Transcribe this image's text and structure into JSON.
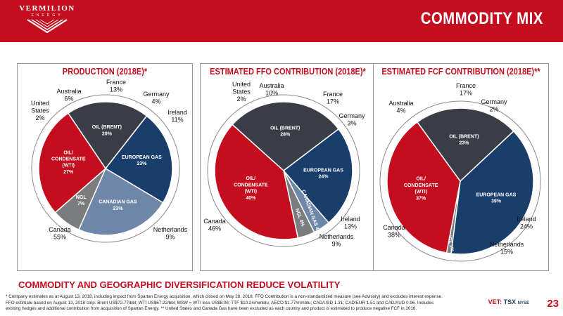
{
  "header": {
    "logo_text": "VERMILION",
    "logo_sub": "ENERGY",
    "title": "COMMODITY MIX"
  },
  "colors": {
    "brand_red": "#c40d1e",
    "oil_gray": "#3a3d45",
    "euro_gas_blue": "#1a3e6c",
    "canadian_gas_blue": "#6e86a8",
    "ngl_gray": "#7a7c7e"
  },
  "chart_data": [
    {
      "type": "pie",
      "title": "PRODUCTION (2018E)*",
      "slices": [
        {
          "label": "OIL (BRENT)",
          "value": 20
        },
        {
          "label": "EUROPEAN GAS",
          "value": 23
        },
        {
          "label": "CANADIAN GAS",
          "value": 23
        },
        {
          "label": "NGL",
          "value": 7
        },
        {
          "label": "OIL/ CONDENSATE (WTI)",
          "value": 27
        }
      ],
      "outer_labels": [
        {
          "name": "France",
          "value": "13%"
        },
        {
          "name": "Germany",
          "value": "4%"
        },
        {
          "name": "Ireland",
          "value": "11%"
        },
        {
          "name": "Netherlands",
          "value": "9%"
        },
        {
          "name": "Canada",
          "value": "55%"
        },
        {
          "name": "United States",
          "value": "2%"
        },
        {
          "name": "Australia",
          "value": "6%"
        }
      ]
    },
    {
      "type": "pie",
      "title": "ESTIMATED FFO CONTRIBUTION (2018E)*",
      "slices": [
        {
          "label": "OIL (BRENT)",
          "value": 28
        },
        {
          "label": "EUROPEAN GAS",
          "value": 24
        },
        {
          "label": "CANADIAN GAS",
          "value": 4
        },
        {
          "label": "NGL",
          "value": 4
        },
        {
          "label": "OIL/ CONDENSATE (WTI)",
          "value": 40
        }
      ],
      "outer_labels": [
        {
          "name": "France",
          "value": "17%"
        },
        {
          "name": "Germany",
          "value": "3%"
        },
        {
          "name": "Ireland",
          "value": "13%"
        },
        {
          "name": "Netherlands",
          "value": "9%"
        },
        {
          "name": "Canada",
          "value": "46%"
        },
        {
          "name": "United States",
          "value": "2%"
        },
        {
          "name": "Australia",
          "value": "10%"
        }
      ]
    },
    {
      "type": "pie",
      "title": "ESTIMATED FCF CONTRIBUTION (2018E)**",
      "slices": [
        {
          "label": "OIL (BRENT)",
          "value": 23
        },
        {
          "label": "EUROPEAN GAS",
          "value": 39
        },
        {
          "label": "NGL",
          "value": 1
        },
        {
          "label": "OIL/ CONDENSATE (WTI)",
          "value": 37
        }
      ],
      "outer_labels": [
        {
          "name": "France",
          "value": "17%"
        },
        {
          "name": "Germany",
          "value": "2%"
        },
        {
          "name": "Ireland",
          "value": "24%"
        },
        {
          "name": "Netherlands",
          "value": "15%"
        },
        {
          "name": "Canada",
          "value": "38%"
        },
        {
          "name": "Australia",
          "value": "4%"
        }
      ]
    }
  ],
  "banner": "COMMODITY AND GEOGRAPHIC DIVERSIFICATION REDUCE VOLATILITY",
  "footnote_lines": [
    "* Company estimates as at August 13, 2018, including impact from Spartan Energy acquisition, which closed on May 28, 2018.  FFO Contribution is a non-standardized measure (see Advisory) and excludes interest expense.",
    "FFO estimate based on August 13, 2018 strip:  Brent US$72.77/bbl;  WTI US$67.22/bbl; MSW = WTI less US$8.06; TTF $10.24/mmbtu; AECO $1.77/mmbtu; CAD/USD 1.31; CAD/EUR 1.51 and CAD/AUD 0.96. Includes",
    "existing hedges and additional contribution from acquisition of Spartan Energy. ** United States and Canada Gas have been excluded as each country and product is estimated to produce negative FCF in 2018."
  ],
  "ticker": {
    "vet": "VET:",
    "tsx": "TSX",
    "nyse": "NYSE"
  },
  "page_number": "23"
}
